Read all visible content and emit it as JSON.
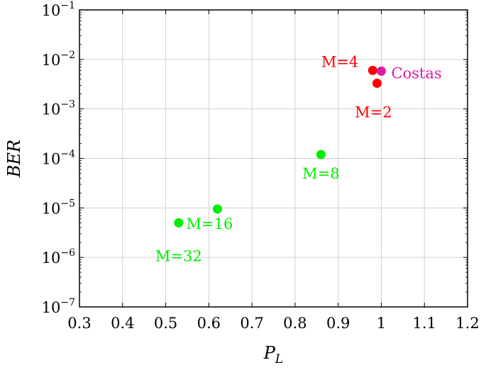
{
  "chart_data": {
    "type": "scatter",
    "xlabel": "P",
    "xlabel_sub": "L",
    "ylabel": "BER",
    "xlim": [
      0.3,
      1.2
    ],
    "ylim": [
      1e-07,
      0.1
    ],
    "yscale": "log",
    "grid": true,
    "x_ticks": [
      "0.3",
      "0.4",
      "0.5",
      "0.6",
      "0.7",
      "0.8",
      "0.9",
      "1",
      "1.1",
      "1.2"
    ],
    "y_ticks": [
      {
        "base": "10",
        "exp": "−7"
      },
      {
        "base": "10",
        "exp": "−6"
      },
      {
        "base": "10",
        "exp": "−5"
      },
      {
        "base": "10",
        "exp": "−4"
      },
      {
        "base": "10",
        "exp": "−3"
      },
      {
        "base": "10",
        "exp": "−2"
      },
      {
        "base": "10",
        "exp": "−1"
      }
    ],
    "points": [
      {
        "label": "M=2",
        "x": 0.99,
        "y": 0.0033,
        "color": "#ff0000",
        "label_pos": "below"
      },
      {
        "label": "M=4",
        "x": 0.98,
        "y": 0.006,
        "color": "#ff0000",
        "label_pos": "left"
      },
      {
        "label": "Costas",
        "x": 1.0,
        "y": 0.0058,
        "color": "#e01aa8",
        "label_pos": "right"
      },
      {
        "label": "M=8",
        "x": 0.86,
        "y": 0.00012,
        "color": "#00ee00",
        "label_pos": "below"
      },
      {
        "label": "M=16",
        "x": 0.62,
        "y": 9.5e-06,
        "color": "#00ee00",
        "label_pos": "right"
      },
      {
        "label": "M=32",
        "x": 0.53,
        "y": 5e-06,
        "color": "#00ee00",
        "label_pos": "below"
      }
    ]
  }
}
